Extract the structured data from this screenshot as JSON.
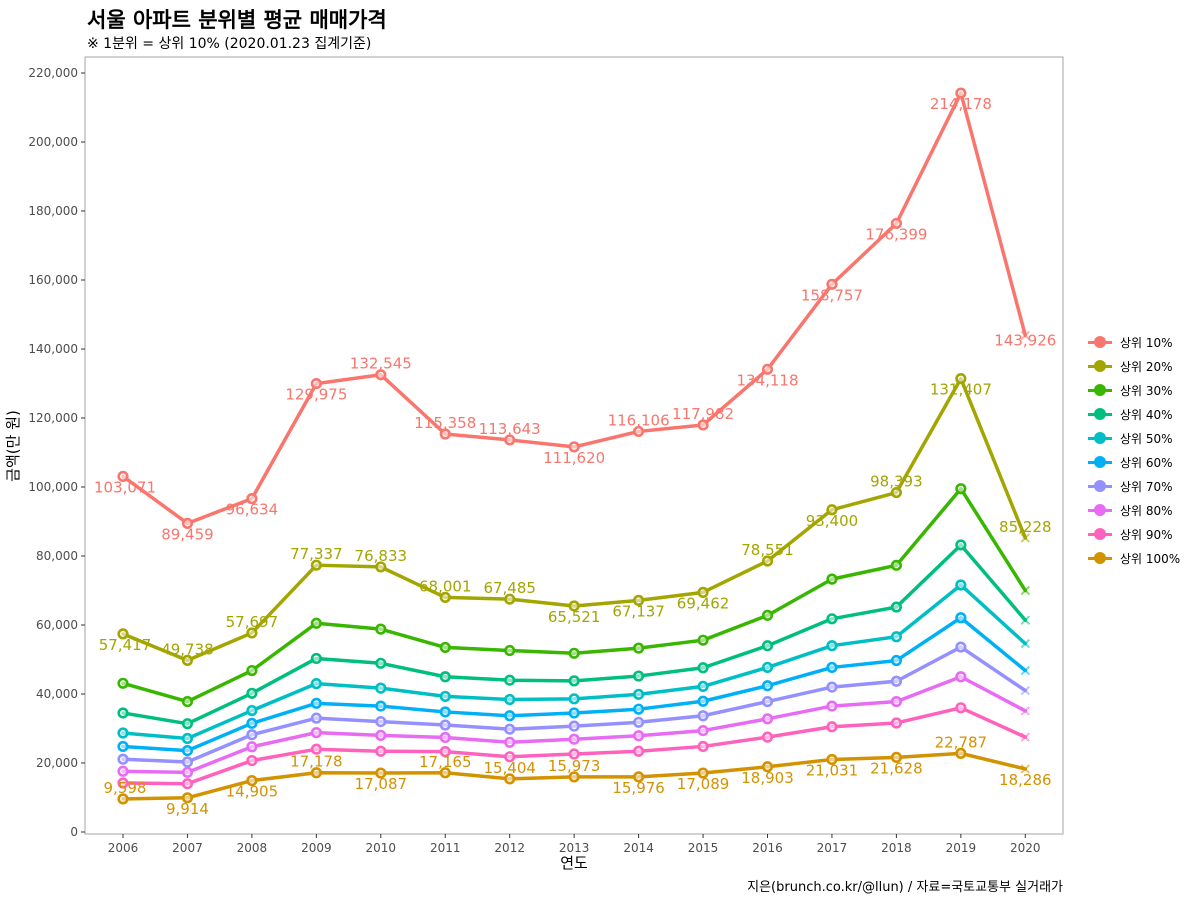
{
  "title": "서울 아파트 분위별 평균 매매가격",
  "subtitle": "※ 1분위 = 상위 10% (2020.01.23 집계기준)",
  "caption": "지은(brunch.co.kr/@llun) / 자료=국토교통부 실거래가",
  "chart_data": {
    "type": "line",
    "title": "서울 아파트 분위별 평균 매매가격",
    "subtitle": "※ 1분위 = 상위 10% (2020.01.23 집계기준)",
    "xlabel": "연도",
    "ylabel": "금액(만 원)",
    "ylim": [
      0,
      220000
    ],
    "yticks": [
      "0",
      "20,000",
      "40,000",
      "60,000",
      "80,000",
      "100,000",
      "120,000",
      "140,000",
      "160,000",
      "180,000",
      "200,000",
      "220,000"
    ],
    "x": [
      "2006",
      "2007",
      "2008",
      "2009",
      "2010",
      "2011",
      "2012",
      "2013",
      "2014",
      "2015",
      "2016",
      "2017",
      "2018",
      "2019",
      "2020"
    ],
    "grid": false,
    "legend_position": "right",
    "series": [
      {
        "name": "상위 10%",
        "color": "#F8766D",
        "values": [
          103071,
          89459,
          96634,
          129975,
          132545,
          115358,
          113643,
          111620,
          116106,
          117982,
          134118,
          158757,
          176399,
          214178,
          143926
        ],
        "labels": [
          "103,071",
          "89,459",
          "96,634",
          "129,975",
          "132,545",
          "115,358",
          "113,643",
          "111,620",
          "116,106",
          "117,982",
          "134,118",
          "158,757",
          "176,399",
          "214,178",
          "143,926"
        ]
      },
      {
        "name": "상위 20%",
        "color": "#A3A500",
        "values": [
          57417,
          49738,
          57697,
          77337,
          76833,
          68001,
          67485,
          65521,
          67137,
          69462,
          78551,
          93400,
          98393,
          131407,
          85228
        ],
        "labels": [
          "57,417",
          "49,738",
          "57,697",
          "77,337",
          "76,833",
          "68,001",
          "67,485",
          "65,521",
          "67,137",
          "69,462",
          "78,551",
          "93,400",
          "98,393",
          "131,407",
          "85,228"
        ]
      },
      {
        "name": "상위 30%",
        "color": "#39B600",
        "values": [
          43100,
          37800,
          46800,
          60500,
          58800,
          53500,
          52600,
          51800,
          53300,
          55600,
          62800,
          73300,
          77300,
          99500,
          70000
        ]
      },
      {
        "name": "상위 40%",
        "color": "#00BF7D",
        "values": [
          34500,
          31400,
          40200,
          50300,
          48900,
          45000,
          44000,
          43800,
          45200,
          47600,
          54000,
          61800,
          65200,
          83200,
          61400
        ]
      },
      {
        "name": "상위 50%",
        "color": "#00BFC4",
        "values": [
          28700,
          27100,
          35200,
          43000,
          41700,
          39300,
          38400,
          38600,
          39900,
          42200,
          47700,
          54000,
          56600,
          71600,
          54600
        ]
      },
      {
        "name": "상위 60%",
        "color": "#00B0F6",
        "values": [
          24800,
          23600,
          31500,
          37300,
          36500,
          34800,
          33700,
          34500,
          35600,
          37900,
          42400,
          47700,
          49700,
          62100,
          46800
        ]
      },
      {
        "name": "상위 70%",
        "color": "#9590FF",
        "values": [
          21100,
          20300,
          28200,
          33000,
          32000,
          31000,
          29800,
          30700,
          31800,
          33700,
          37800,
          42000,
          43700,
          53600,
          41000
        ]
      },
      {
        "name": "상위 80%",
        "color": "#E76BF3",
        "values": [
          17600,
          17300,
          24700,
          28800,
          28000,
          27400,
          26000,
          26900,
          27900,
          29400,
          32800,
          36500,
          37800,
          45000,
          35100
        ]
      },
      {
        "name": "상위 90%",
        "color": "#FF62BC",
        "values": [
          14200,
          14000,
          20700,
          24000,
          23400,
          23300,
          21800,
          22600,
          23400,
          24800,
          27500,
          30500,
          31600,
          36000,
          27500
        ]
      },
      {
        "name": "상위 100%",
        "color": "#D39200",
        "values": [
          9598,
          9914,
          14905,
          17178,
          17087,
          17165,
          15404,
          15973,
          15976,
          17089,
          18903,
          21031,
          21628,
          22787,
          18286
        ],
        "labels": [
          "9,598",
          "9,914",
          "14,905",
          "17,178",
          "17,087",
          "17,165",
          "15,404",
          "15,973",
          "15,976",
          "17,089",
          "18,903",
          "21,031",
          "21,628",
          "22,787",
          "18,286"
        ]
      }
    ]
  }
}
